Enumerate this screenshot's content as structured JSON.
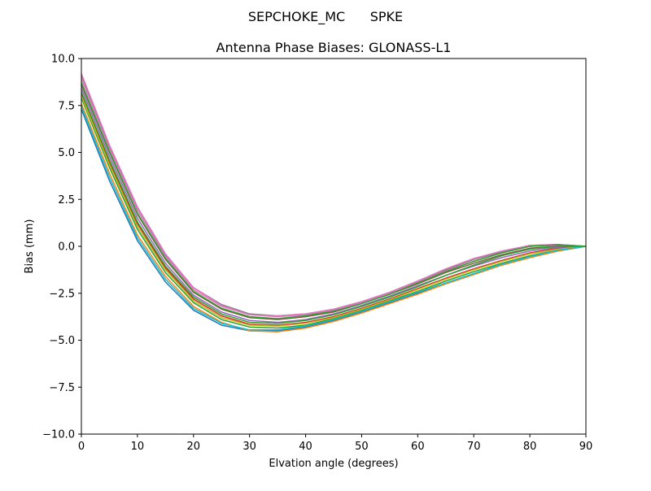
{
  "figure": {
    "suptitle": "SEPCHOKE_MC      SPKE"
  },
  "chart_data": {
    "type": "line",
    "title": "Antenna Phase Biases: GLONASS-L1",
    "xlabel": "Elvation angle (degrees)",
    "ylabel": "Bias (mm)",
    "xlim": [
      0,
      90
    ],
    "ylim": [
      -10.0,
      10.0
    ],
    "x_ticks": [
      0,
      10,
      20,
      30,
      40,
      50,
      60,
      70,
      80,
      90
    ],
    "x_tick_labels": [
      "0",
      "10",
      "20",
      "30",
      "40",
      "50",
      "60",
      "70",
      "80",
      "90"
    ],
    "y_ticks": [
      -10.0,
      -7.5,
      -5.0,
      -2.5,
      0.0,
      2.5,
      5.0,
      7.5,
      10.0
    ],
    "y_tick_labels": [
      "−10.0",
      "−7.5",
      "−5.0",
      "−2.5",
      "0.0",
      "2.5",
      "5.0",
      "7.5",
      "10.0"
    ],
    "grid": false,
    "legend": "none",
    "x": [
      0,
      5,
      10,
      15,
      20,
      25,
      30,
      35,
      40,
      45,
      50,
      55,
      60,
      65,
      70,
      75,
      80,
      85,
      90
    ],
    "series": [
      {
        "color": "#1f77b4",
        "values": [
          7.3,
          3.5,
          0.3,
          -1.9,
          -3.4,
          -4.2,
          -4.5,
          -4.5,
          -4.3,
          -3.95,
          -3.5,
          -3.0,
          -2.5,
          -2.0,
          -1.5,
          -1.0,
          -0.6,
          -0.25,
          0.0
        ]
      },
      {
        "color": "#ff7f0e",
        "values": [
          7.6,
          3.9,
          0.6,
          -1.6,
          -3.2,
          -4.05,
          -4.5,
          -4.55,
          -4.35,
          -4.0,
          -3.55,
          -3.05,
          -2.55,
          -2.0,
          -1.5,
          -1.0,
          -0.6,
          -0.25,
          0.0
        ]
      },
      {
        "color": "#2ca02c",
        "values": [
          7.9,
          4.2,
          0.9,
          -1.4,
          -3.0,
          -3.9,
          -4.3,
          -4.35,
          -4.2,
          -3.85,
          -3.4,
          -2.9,
          -2.4,
          -1.85,
          -1.35,
          -0.9,
          -0.5,
          -0.2,
          0.0
        ]
      },
      {
        "color": "#d62728",
        "values": [
          8.1,
          4.5,
          1.2,
          -1.15,
          -2.8,
          -3.7,
          -4.15,
          -4.2,
          -4.05,
          -3.75,
          -3.3,
          -2.8,
          -2.25,
          -1.7,
          -1.2,
          -0.75,
          -0.35,
          -0.1,
          0.0
        ]
      },
      {
        "color": "#9467bd",
        "values": [
          8.4,
          4.8,
          1.5,
          -0.9,
          -2.6,
          -3.5,
          -3.95,
          -4.05,
          -3.9,
          -3.6,
          -3.15,
          -2.65,
          -2.1,
          -1.55,
          -1.05,
          -0.6,
          -0.25,
          -0.05,
          0.0
        ]
      },
      {
        "color": "#8c564b",
        "values": [
          8.6,
          5.0,
          1.7,
          -0.7,
          -2.45,
          -3.35,
          -3.8,
          -3.9,
          -3.75,
          -3.5,
          -3.05,
          -2.55,
          -2.0,
          -1.4,
          -0.9,
          -0.45,
          -0.1,
          0.0,
          0.0
        ]
      },
      {
        "color": "#e377c2",
        "values": [
          8.9,
          5.2,
          1.9,
          -0.55,
          -2.3,
          -3.2,
          -3.65,
          -3.75,
          -3.65,
          -3.4,
          -3.0,
          -2.5,
          -1.9,
          -1.3,
          -0.8,
          -0.35,
          -0.0,
          0.05,
          0.0
        ]
      },
      {
        "color": "#7f7f7f",
        "values": [
          9.1,
          5.35,
          2.05,
          -0.45,
          -2.2,
          -3.1,
          -3.6,
          -3.7,
          -3.6,
          -3.35,
          -2.95,
          -2.45,
          -1.85,
          -1.25,
          -0.7,
          -0.3,
          0.05,
          0.1,
          0.0
        ]
      },
      {
        "color": "#bcbd22",
        "values": [
          8.0,
          4.35,
          1.05,
          -1.25,
          -2.9,
          -3.8,
          -4.2,
          -4.25,
          -4.1,
          -3.8,
          -3.35,
          -2.85,
          -2.3,
          -1.75,
          -1.25,
          -0.8,
          -0.4,
          -0.15,
          0.0
        ]
      },
      {
        "color": "#17becf",
        "values": [
          7.45,
          3.7,
          0.45,
          -1.75,
          -3.3,
          -4.1,
          -4.45,
          -4.45,
          -4.25,
          -3.9,
          -3.45,
          -2.95,
          -2.45,
          -1.95,
          -1.45,
          -0.95,
          -0.55,
          -0.2,
          0.0
        ]
      },
      {
        "color": "#2ca02c",
        "values": [
          8.2,
          4.6,
          1.3,
          -1.05,
          -2.7,
          -3.6,
          -4.05,
          -4.1,
          -3.95,
          -3.65,
          -3.2,
          -2.7,
          -2.15,
          -1.55,
          -1.0,
          -0.5,
          -0.15,
          -0.0,
          0.0
        ]
      },
      {
        "color": "#e377c2",
        "values": [
          9.2,
          5.4,
          2.1,
          -0.4,
          -2.2,
          -3.15,
          -3.65,
          -3.7,
          -3.6,
          -3.35,
          -2.95,
          -2.45,
          -1.85,
          -1.2,
          -0.65,
          -0.25,
          0.05,
          0.1,
          0.0
        ]
      },
      {
        "color": "#2ca02c",
        "values": [
          8.7,
          5.05,
          1.75,
          -0.65,
          -2.4,
          -3.3,
          -3.75,
          -3.85,
          -3.7,
          -3.45,
          -3.05,
          -2.55,
          -1.95,
          -1.35,
          -0.8,
          -0.35,
          0.0,
          0.08,
          0.0
        ]
      }
    ]
  }
}
